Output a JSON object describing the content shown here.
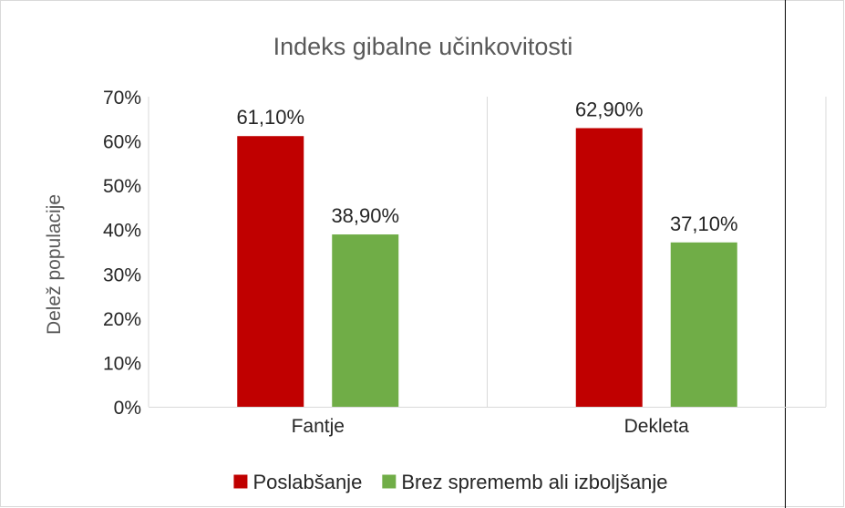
{
  "chart_data": {
    "type": "bar",
    "title": "Indeks gibalne učinkovitosti",
    "xlabel": "",
    "ylabel": "Delež populacije",
    "categories": [
      "Fantje",
      "Dekleta"
    ],
    "series": [
      {
        "name": "Poslabšanje",
        "values": [
          61.1,
          62.9
        ],
        "labels": [
          "61,10%",
          "62,90%"
        ],
        "color": "#c00000"
      },
      {
        "name": "Brez sprememb ali izboljšanje",
        "values": [
          38.9,
          37.1
        ],
        "labels": [
          "38,90%",
          "37,10%"
        ],
        "color": "#70ad47"
      }
    ],
    "ylim": [
      0,
      70
    ],
    "yticks": [
      "0%",
      "10%",
      "20%",
      "30%",
      "40%",
      "50%",
      "60%",
      "70%"
    ],
    "legend": "bottom",
    "grid": false
  }
}
